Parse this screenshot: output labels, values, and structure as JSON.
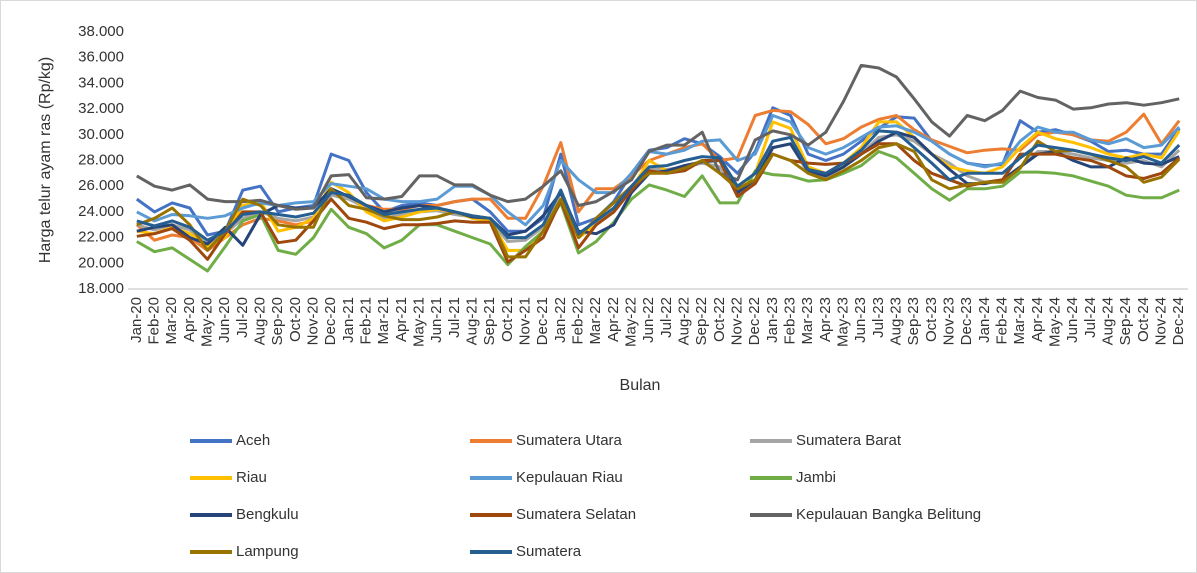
{
  "chart_data": {
    "type": "line",
    "x_label": "Bulan",
    "y_label": "Harga telur ayam ras (Rp/kg)",
    "categories": [
      "Jan-20",
      "Feb-20",
      "Mar-20",
      "Apr-20",
      "May-20",
      "Jun-20",
      "Jul-20",
      "Aug-20",
      "Sep-20",
      "Oct-20",
      "Nov-20",
      "Dec-20",
      "Jan-21",
      "Feb-21",
      "Mar-21",
      "Apr-21",
      "May-21",
      "Jun-21",
      "Jul-21",
      "Aug-21",
      "Sep-21",
      "Oct-21",
      "Nov-21",
      "Dec-21",
      "Jan-22",
      "Feb-22",
      "Mar-22",
      "Apr-22",
      "May-22",
      "Jun-22",
      "Jul-22",
      "Aug-22",
      "Sep-22",
      "Oct-22",
      "Nov-22",
      "Dec-22",
      "Jan-23",
      "Feb-23",
      "Mar-23",
      "Apr-23",
      "May-23",
      "Jun-23",
      "Jul-23",
      "Aug-23",
      "Sep-23",
      "Oct-23",
      "Nov-23",
      "Dec-23",
      "Jan-24",
      "Feb-24",
      "Mar-24",
      "Apr-24",
      "May-24",
      "Jun-24",
      "Jul-24",
      "Aug-24",
      "Sep-24",
      "Oct-24",
      "Nov-24",
      "Dec-24"
    ],
    "ylim": [
      18000,
      38000
    ],
    "yticks": [
      {
        "value": 18000,
        "label": "18.000"
      },
      {
        "value": 20000,
        "label": "20.000"
      },
      {
        "value": 22000,
        "label": "22.000"
      },
      {
        "value": 24000,
        "label": "24.000"
      },
      {
        "value": 26000,
        "label": "26.000"
      },
      {
        "value": 28000,
        "label": "28.000"
      },
      {
        "value": 30000,
        "label": "30.000"
      },
      {
        "value": 32000,
        "label": "32.000"
      },
      {
        "value": 34000,
        "label": "34.000"
      },
      {
        "value": 36000,
        "label": "36.000"
      },
      {
        "value": 38000,
        "label": "38.000"
      }
    ],
    "grid": false,
    "series": [
      {
        "name": "Aceh",
        "color": "#4472c4",
        "values": [
          25000,
          24000,
          24700,
          24300,
          22200,
          22500,
          25700,
          26000,
          24000,
          24300,
          24500,
          28500,
          28000,
          25500,
          24000,
          24500,
          24700,
          24500,
          24800,
          25000,
          24000,
          22500,
          22500,
          23500,
          28500,
          23000,
          23500,
          24800,
          27000,
          28800,
          29000,
          29700,
          29300,
          28300,
          27000,
          28700,
          32100,
          31500,
          28500,
          28000,
          28500,
          29500,
          30500,
          31400,
          31300,
          29500,
          28500,
          27800,
          27600,
          27700,
          31100,
          30200,
          30400,
          30000,
          29500,
          28700,
          28800,
          28500,
          28500,
          30500
        ]
      },
      {
        "name": "Sumatera Utara",
        "color": "#ed7d31",
        "values": [
          23000,
          21800,
          22200,
          22000,
          21000,
          22000,
          23000,
          23500,
          23300,
          23000,
          23300,
          25500,
          25000,
          24500,
          24200,
          24200,
          24500,
          24500,
          24800,
          25000,
          25000,
          23500,
          23500,
          26000,
          29400,
          24000,
          25800,
          25800,
          26800,
          28000,
          28500,
          29000,
          29300,
          28000,
          28200,
          31500,
          31900,
          31800,
          30800,
          29300,
          29700,
          30600,
          31200,
          31500,
          30400,
          29600,
          29100,
          28600,
          28800,
          28900,
          28800,
          30000,
          30200,
          30000,
          29600,
          29500,
          30200,
          31600,
          29300,
          31100
        ]
      },
      {
        "name": "Sumatera Barat",
        "color": "#a5a5a5",
        "values": [
          23000,
          22600,
          23000,
          22600,
          21500,
          22300,
          23500,
          24000,
          23500,
          23300,
          23600,
          25300,
          25000,
          24300,
          23500,
          23800,
          24000,
          24100,
          23800,
          23600,
          23300,
          21700,
          21800,
          22800,
          25500,
          22000,
          23000,
          24000,
          25800,
          27300,
          27300,
          27500,
          27800,
          27500,
          25500,
          26500,
          29000,
          29300,
          27000,
          26700,
          27500,
          28500,
          29800,
          30000,
          29500,
          28500,
          27800,
          26800,
          26300,
          26500,
          27500,
          28700,
          28700,
          28500,
          28200,
          28000,
          27800,
          28000,
          27500,
          28800
        ]
      },
      {
        "name": "Riau",
        "color": "#ffc000",
        "values": [
          22500,
          22300,
          22800,
          22300,
          21300,
          22000,
          24500,
          24800,
          22500,
          22800,
          23500,
          26300,
          25500,
          24000,
          23300,
          23600,
          24000,
          24200,
          24000,
          23500,
          23300,
          21000,
          21000,
          22500,
          25000,
          22000,
          23000,
          24000,
          25800,
          28000,
          27200,
          27300,
          28000,
          28000,
          25600,
          27000,
          31000,
          30500,
          27500,
          27000,
          27800,
          29000,
          31000,
          31000,
          29800,
          28500,
          27500,
          27200,
          27000,
          27500,
          29000,
          30200,
          29700,
          29400,
          29000,
          28500,
          28200,
          28500,
          28200,
          30300
        ]
      },
      {
        "name": "Kepulauan Riau",
        "color": "#5b9bd5",
        "values": [
          24000,
          23300,
          23800,
          23700,
          23500,
          23700,
          24300,
          24700,
          24500,
          24700,
          24800,
          26200,
          26000,
          25800,
          25000,
          24800,
          24800,
          25000,
          26000,
          26000,
          25300,
          24000,
          23000,
          24500,
          28000,
          26500,
          25500,
          25500,
          27000,
          28700,
          28500,
          28800,
          29500,
          29600,
          28000,
          28500,
          31500,
          31000,
          29000,
          28500,
          29000,
          29800,
          30600,
          30700,
          30200,
          29500,
          28500,
          27800,
          27500,
          27800,
          29500,
          30600,
          30200,
          30200,
          29600,
          29300,
          29700,
          29000,
          29200,
          30600
        ]
      },
      {
        "name": "Jambi",
        "color": "#70ad47",
        "values": [
          21700,
          20900,
          21200,
          20300,
          19400,
          21300,
          23300,
          23800,
          21000,
          20700,
          22000,
          24200,
          22800,
          22300,
          21200,
          21800,
          23000,
          23000,
          22500,
          22000,
          21500,
          19900,
          21300,
          22500,
          24700,
          20800,
          21700,
          23200,
          25000,
          26100,
          25700,
          25200,
          26800,
          24700,
          24700,
          27200,
          26900,
          26800,
          26400,
          26500,
          27000,
          27600,
          28700,
          28200,
          27000,
          25800,
          24900,
          25800,
          25800,
          26000,
          27100,
          27100,
          27000,
          26800,
          26400,
          26000,
          25300,
          25100,
          25100,
          25700
        ]
      },
      {
        "name": "Bengkulu",
        "color": "#264478",
        "values": [
          22500,
          22800,
          23000,
          22000,
          21500,
          22800,
          21400,
          23800,
          24500,
          24300,
          24300,
          25800,
          25200,
          24500,
          24000,
          24300,
          24500,
          24300,
          24000,
          23600,
          23500,
          22200,
          22500,
          23700,
          25500,
          22500,
          22300,
          23000,
          25500,
          27000,
          27200,
          27600,
          27900,
          28000,
          25500,
          26500,
          29000,
          29300,
          27200,
          26800,
          27500,
          28500,
          29500,
          30200,
          29800,
          28500,
          27300,
          26200,
          26200,
          26500,
          27500,
          28500,
          28700,
          28000,
          27500,
          27500,
          28200,
          27800,
          27700,
          28300
        ]
      },
      {
        "name": "Sumatera Selatan",
        "color": "#9e480e",
        "values": [
          22100,
          22300,
          22700,
          21800,
          20300,
          22300,
          24000,
          24000,
          21600,
          21800,
          23300,
          25000,
          23500,
          23200,
          22700,
          23000,
          23000,
          23100,
          23300,
          23200,
          23200,
          20100,
          21000,
          22000,
          24900,
          21200,
          23000,
          24000,
          25700,
          27200,
          27000,
          27200,
          28000,
          28000,
          25200,
          26200,
          28500,
          28000,
          27800,
          27700,
          27800,
          28500,
          29300,
          29300,
          28000,
          27000,
          26500,
          26000,
          26300,
          26500,
          28500,
          28500,
          28500,
          28200,
          28000,
          27500,
          26800,
          26600,
          27000,
          28200
        ]
      },
      {
        "name": "Kepulauan Bangka Belitung",
        "color": "#636363",
        "values": [
          26800,
          26000,
          25700,
          26100,
          25000,
          24800,
          24800,
          24900,
          24500,
          24200,
          24300,
          26800,
          26900,
          25100,
          25000,
          25200,
          26800,
          26800,
          26100,
          26100,
          25300,
          24800,
          25000,
          26000,
          27200,
          24500,
          24800,
          25600,
          26500,
          28700,
          29200,
          29200,
          30200,
          27000,
          26500,
          29600,
          30300,
          30000,
          29200,
          30200,
          32600,
          35400,
          35200,
          34500,
          32800,
          31000,
          29900,
          31500,
          31100,
          31900,
          33400,
          32900,
          32700,
          32000,
          32100,
          32400,
          32500,
          32300,
          32500,
          32800
        ]
      },
      {
        "name": "Lampung",
        "color": "#997300",
        "values": [
          23000,
          23500,
          24300,
          23000,
          21000,
          22500,
          25000,
          24500,
          23000,
          22800,
          22800,
          25800,
          24500,
          24200,
          23700,
          23400,
          23400,
          23600,
          24000,
          23700,
          23500,
          20500,
          20500,
          22500,
          25000,
          22000,
          23500,
          24700,
          26000,
          27000,
          27000,
          27400,
          28000,
          27000,
          25800,
          26500,
          28500,
          28000,
          27000,
          26500,
          27200,
          28000,
          29000,
          29300,
          28700,
          26500,
          25800,
          26100,
          26300,
          26300,
          27400,
          29500,
          28700,
          28800,
          28500,
          28000,
          27500,
          26300,
          26700,
          28100
        ]
      },
      {
        "name": "Sumatera",
        "color": "#255e91",
        "values": [
          23300,
          22900,
          23300,
          22800,
          21800,
          22500,
          23800,
          24000,
          23800,
          23600,
          23900,
          25500,
          25300,
          24500,
          23800,
          24000,
          24200,
          24300,
          24000,
          23700,
          23500,
          22000,
          22000,
          23000,
          25700,
          22300,
          23300,
          24300,
          26000,
          27500,
          27600,
          28000,
          28300,
          28200,
          26000,
          27000,
          29500,
          29800,
          27300,
          27000,
          27800,
          28800,
          30300,
          30200,
          29000,
          27800,
          26500,
          27000,
          27000,
          27000,
          28200,
          29200,
          29000,
          28800,
          28500,
          28200,
          28000,
          28300,
          27800,
          29200
        ]
      }
    ]
  }
}
